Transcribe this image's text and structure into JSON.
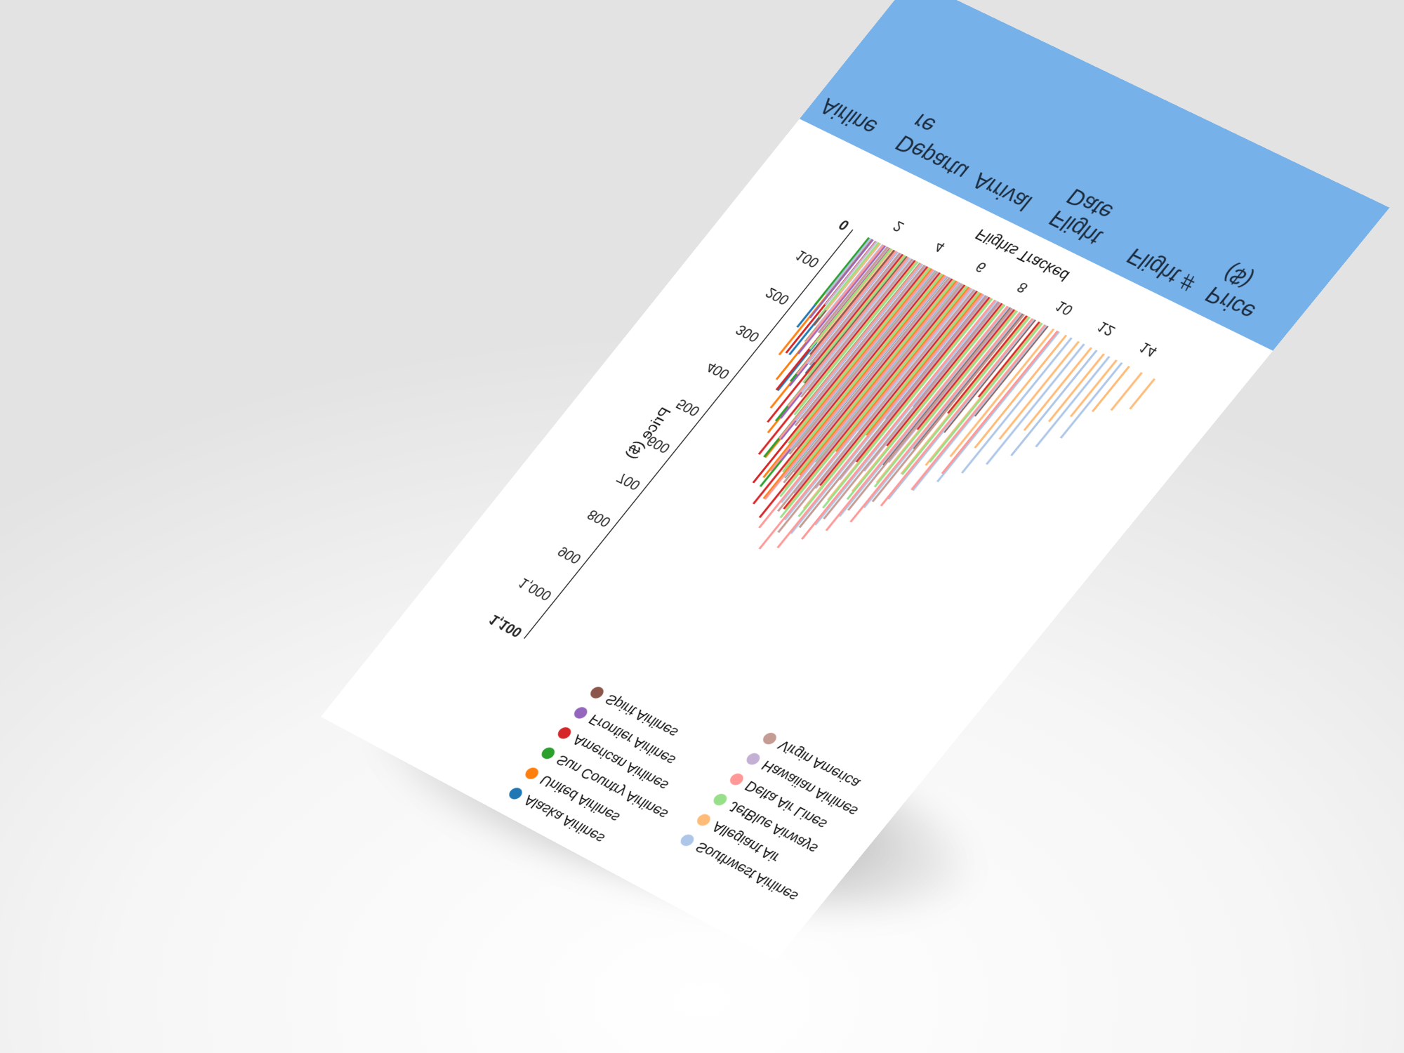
{
  "table": {
    "headers": [
      "Airline",
      "Departure",
      "Arrival",
      "Flight Date",
      "Flight #",
      "Price ($)"
    ]
  },
  "chart_data": {
    "type": "bar",
    "title": "",
    "xlabel": "Flights Tracked",
    "ylabel": "Price ($)",
    "ylim": [
      0,
      1100
    ],
    "xlim": [
      1,
      15
    ],
    "x_ticks": [
      "2",
      "4",
      "6",
      "8",
      "10",
      "12",
      "14"
    ],
    "y_ticks": [
      "0",
      "100",
      "200",
      "300",
      "400",
      "500",
      "600",
      "700",
      "800",
      "900",
      "1,000",
      "1,100"
    ],
    "grid": false,
    "legend": {
      "placement": "top",
      "columns": [
        [
          "Alaska Airlines",
          "United Airlines",
          "Sun Country Airlines",
          "American Airlines",
          "Frontier Airlines",
          "Spirit Airlines"
        ],
        [
          "Southwest Airlines",
          "Allegiant Air",
          "JetBlue Airways",
          "Delta Air Lines",
          "Hawaiian Airlines",
          "Virgin America"
        ]
      ]
    },
    "series": [
      {
        "name": "Alaska Airlines",
        "color": "#1f77b4",
        "points": [
          [
            1.3,
            240
          ],
          [
            1.8,
            300
          ],
          [
            2.4,
            380
          ],
          [
            2.9,
            320
          ],
          [
            3.5,
            280
          ],
          [
            4.2,
            250
          ],
          [
            4.8,
            220
          ],
          [
            5.3,
            180
          ],
          [
            5.9,
            140
          ]
        ]
      },
      {
        "name": "United Airlines",
        "color": "#ff7f0e",
        "points": [
          [
            1.4,
            310
          ],
          [
            2.0,
            360
          ],
          [
            2.6,
            420
          ],
          [
            3.2,
            470
          ],
          [
            3.8,
            520
          ],
          [
            4.3,
            560
          ],
          [
            4.9,
            600
          ],
          [
            5.5,
            520
          ],
          [
            6.1,
            440
          ],
          [
            6.7,
            380
          ],
          [
            7.2,
            300
          ]
        ]
      },
      {
        "name": "Sun Country Airlines",
        "color": "#2ca02c",
        "points": [
          [
            1.2,
            180
          ],
          [
            1.9,
            260
          ],
          [
            2.5,
            350
          ],
          [
            3.1,
            440
          ],
          [
            3.7,
            520
          ],
          [
            4.4,
            580
          ],
          [
            5.0,
            540
          ],
          [
            5.6,
            480
          ]
        ]
      },
      {
        "name": "American Airlines",
        "color": "#d62728",
        "points": [
          [
            1.5,
            300
          ],
          [
            2.2,
            380
          ],
          [
            2.8,
            450
          ],
          [
            3.4,
            520
          ],
          [
            4.0,
            580
          ],
          [
            4.6,
            620
          ],
          [
            5.2,
            640
          ],
          [
            5.8,
            600
          ],
          [
            6.4,
            520
          ],
          [
            7.0,
            440
          ],
          [
            7.6,
            380
          ],
          [
            8.2,
            320
          ],
          [
            8.8,
            260
          ],
          [
            9.4,
            200
          ]
        ]
      },
      {
        "name": "Frontier Airlines",
        "color": "#9467bd",
        "points": [
          [
            1.3,
            210
          ],
          [
            1.9,
            290
          ],
          [
            2.5,
            360
          ],
          [
            3.1,
            430
          ],
          [
            3.7,
            470
          ],
          [
            4.3,
            510
          ],
          [
            4.9,
            470
          ],
          [
            5.5,
            420
          ],
          [
            6.1,
            380
          ],
          [
            6.8,
            330
          ],
          [
            7.4,
            280
          ]
        ]
      },
      {
        "name": "Spirit Airlines",
        "color": "#8c564b",
        "points": [
          [
            1.6,
            220
          ],
          [
            2.3,
            280
          ],
          [
            2.9,
            340
          ],
          [
            3.6,
            400
          ],
          [
            4.2,
            460
          ],
          [
            4.8,
            520
          ],
          [
            5.4,
            580
          ],
          [
            6.0,
            560
          ],
          [
            6.6,
            520
          ],
          [
            7.2,
            480
          ],
          [
            7.9,
            420
          ],
          [
            8.5,
            360
          ],
          [
            9.1,
            300
          ],
          [
            9.7,
            240
          ]
        ]
      },
      {
        "name": "Southwest Airlines",
        "color": "#aec7e8",
        "points": [
          [
            1.1,
            150
          ],
          [
            1.7,
            220
          ],
          [
            2.4,
            300
          ],
          [
            3.0,
            360
          ],
          [
            3.6,
            420
          ],
          [
            4.2,
            480
          ],
          [
            4.8,
            540
          ],
          [
            5.4,
            590
          ],
          [
            6.0,
            620
          ],
          [
            6.6,
            640
          ],
          [
            7.2,
            600
          ],
          [
            7.8,
            560
          ],
          [
            8.4,
            520
          ],
          [
            9.0,
            480
          ],
          [
            9.6,
            440
          ],
          [
            10.2,
            400
          ],
          [
            10.8,
            360
          ],
          [
            11.4,
            320
          ],
          [
            12.0,
            280
          ],
          [
            12.6,
            240
          ],
          [
            13.2,
            200
          ]
        ]
      },
      {
        "name": "Allegiant Air",
        "color": "#ffbb78",
        "points": [
          [
            1.5,
            180
          ],
          [
            2.1,
            250
          ],
          [
            2.7,
            320
          ],
          [
            3.3,
            390
          ],
          [
            3.9,
            460
          ],
          [
            4.5,
            520
          ],
          [
            5.1,
            560
          ],
          [
            5.7,
            600
          ],
          [
            6.3,
            580
          ],
          [
            6.9,
            540
          ],
          [
            7.5,
            500
          ],
          [
            8.1,
            460
          ],
          [
            8.7,
            420
          ],
          [
            9.3,
            380
          ],
          [
            9.9,
            340
          ],
          [
            10.5,
            300
          ],
          [
            11.1,
            260
          ],
          [
            11.7,
            220
          ],
          [
            12.3,
            180
          ],
          [
            12.9,
            150
          ],
          [
            13.5,
            120
          ],
          [
            14.1,
            100
          ],
          [
            14.7,
            80
          ]
        ]
      },
      {
        "name": "JetBlue Airways",
        "color": "#98df8a",
        "points": [
          [
            1.4,
            200
          ],
          [
            2.0,
            270
          ],
          [
            2.7,
            340
          ],
          [
            3.3,
            410
          ],
          [
            3.9,
            470
          ],
          [
            4.5,
            530
          ],
          [
            5.1,
            580
          ],
          [
            5.7,
            620
          ],
          [
            6.3,
            600
          ],
          [
            6.9,
            560
          ],
          [
            7.5,
            520
          ],
          [
            8.1,
            470
          ],
          [
            8.7,
            420
          ],
          [
            9.3,
            370
          ]
        ]
      },
      {
        "name": "Delta Air Lines",
        "color": "#ff9896",
        "points": [
          [
            1.6,
            260
          ],
          [
            2.2,
            330
          ],
          [
            2.8,
            400
          ],
          [
            3.4,
            470
          ],
          [
            4.0,
            540
          ],
          [
            4.6,
            600
          ],
          [
            5.2,
            660
          ],
          [
            5.8,
            700
          ],
          [
            6.4,
            680
          ],
          [
            7.0,
            640
          ],
          [
            7.6,
            600
          ],
          [
            8.2,
            560
          ],
          [
            8.8,
            500
          ],
          [
            9.4,
            440
          ],
          [
            10.0,
            380
          ]
        ]
      },
      {
        "name": "Hawaiian Airlines",
        "color": "#c5b0d5",
        "points": [
          [
            1.2,
            170
          ],
          [
            1.8,
            230
          ],
          [
            2.4,
            290
          ],
          [
            3.0,
            350
          ],
          [
            3.6,
            410
          ],
          [
            4.2,
            470
          ],
          [
            4.8,
            520
          ],
          [
            5.4,
            560
          ],
          [
            6.0,
            530
          ],
          [
            6.6,
            490
          ],
          [
            7.2,
            450
          ],
          [
            7.8,
            410
          ]
        ]
      },
      {
        "name": "Virgin America",
        "color": "#c49c94",
        "points": [
          [
            1.7,
            230
          ],
          [
            2.3,
            300
          ],
          [
            2.9,
            370
          ],
          [
            3.5,
            430
          ],
          [
            4.1,
            490
          ],
          [
            4.7,
            550
          ],
          [
            5.3,
            610
          ],
          [
            5.9,
            650
          ],
          [
            6.5,
            620
          ],
          [
            7.1,
            580
          ],
          [
            7.7,
            540
          ],
          [
            8.3,
            500
          ]
        ]
      }
    ]
  }
}
